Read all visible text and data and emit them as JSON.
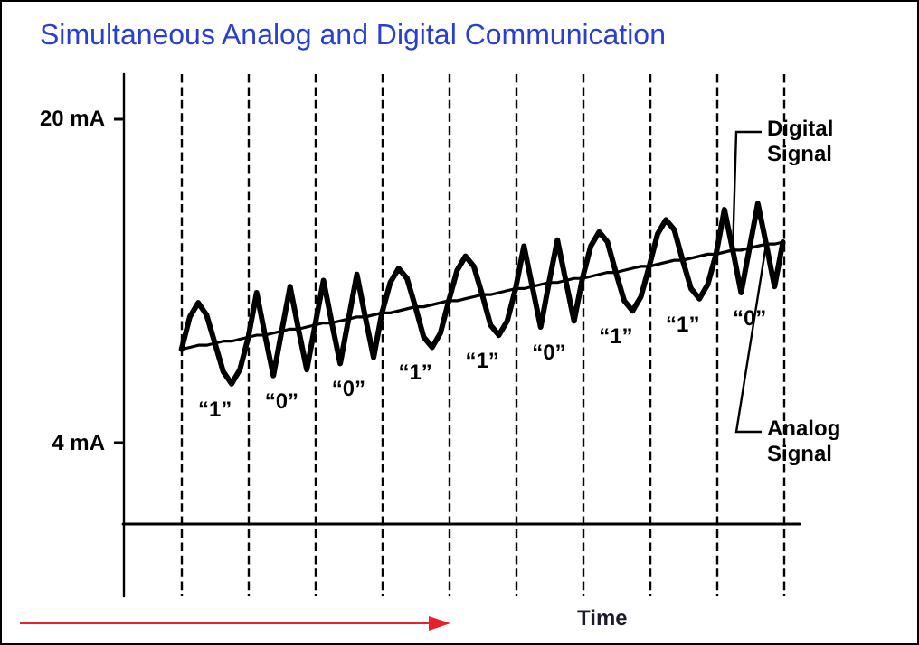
{
  "chart_data": {
    "type": "line",
    "title": "Simultaneous Analog and Digital Communication",
    "xlabel": "Time",
    "ylim": [
      -3.6,
      22.2
    ],
    "yticks": [
      {
        "value": 20,
        "label": "20 mA"
      },
      {
        "value": 4,
        "label": "4 mA"
      }
    ],
    "tick_labels": "y",
    "grid": "x",
    "legend": false,
    "categories": [
      null,
      null,
      null,
      null,
      null,
      null,
      null,
      null,
      null,
      null,
      null,
      null,
      null,
      null,
      null,
      null,
      null,
      null,
      null,
      null,
      null,
      null,
      null,
      null,
      null,
      null,
      null,
      null,
      null,
      null,
      null,
      null,
      null,
      null,
      null,
      null,
      null,
      null,
      null,
      null,
      null,
      null,
      null,
      null,
      null,
      null,
      null,
      null,
      null,
      null,
      null,
      null,
      null,
      null,
      null,
      null,
      null,
      null,
      null,
      null,
      null,
      null,
      null,
      null,
      null,
      null,
      null,
      null,
      null,
      null,
      null,
      null,
      null,
      null,
      null,
      null,
      null,
      null,
      null,
      null,
      null,
      null
    ],
    "series": [
      {
        "name": "Digital Signal",
        "color": "#000000",
        "values": [
          null,
          null,
          null,
          null,
          null,
          null,
          null,
          8.6,
          10.2,
          10.9,
          10.3,
          8.9,
          7.5,
          6.9,
          7.6,
          9.2,
          11.4,
          9.3,
          7.3,
          9.5,
          11.7,
          9.6,
          7.6,
          9.8,
          12.0,
          9.9,
          7.9,
          10.1,
          12.3,
          10.2,
          8.2,
          10.4,
          11.9,
          12.6,
          12.1,
          10.7,
          9.2,
          8.7,
          9.4,
          11.0,
          12.5,
          13.2,
          12.7,
          11.3,
          9.8,
          9.3,
          10.0,
          11.6,
          13.7,
          11.7,
          9.7,
          11.9,
          14.0,
          12.0,
          10.0,
          12.1,
          13.7,
          14.4,
          13.9,
          12.4,
          11.0,
          10.5,
          11.2,
          12.7,
          14.3,
          15.0,
          14.5,
          13.0,
          11.6,
          11.1,
          11.8,
          13.3,
          15.5,
          13.5,
          11.4,
          13.6,
          15.8,
          13.8,
          11.7,
          13.9,
          null,
          null
        ]
      },
      {
        "name": "Analog Signal",
        "color": "#000000",
        "values": [
          null,
          null,
          null,
          null,
          null,
          null,
          null,
          8.6,
          8.7,
          8.8,
          8.8,
          8.9,
          9.0,
          9.0,
          9.1,
          9.2,
          9.3,
          9.3,
          9.4,
          9.5,
          9.6,
          9.6,
          9.7,
          9.8,
          9.9,
          9.9,
          10.0,
          10.1,
          10.2,
          10.2,
          10.3,
          10.4,
          10.4,
          10.5,
          10.6,
          10.7,
          10.7,
          10.8,
          10.9,
          11.0,
          11.0,
          11.1,
          11.2,
          11.3,
          11.3,
          11.4,
          11.5,
          11.6,
          11.6,
          11.7,
          11.8,
          11.9,
          11.9,
          12.0,
          12.1,
          12.1,
          12.2,
          12.3,
          12.4,
          12.4,
          12.5,
          12.6,
          12.7,
          12.7,
          12.8,
          12.9,
          13.0,
          13.0,
          13.1,
          13.2,
          13.3,
          13.3,
          13.4,
          13.5,
          13.5,
          13.6,
          13.7,
          13.8,
          13.8,
          13.9,
          null,
          null
        ]
      }
    ],
    "annotations": [
      "“1”",
      "“0”",
      "“0”",
      "“1”",
      "“1”",
      "“0”",
      "“1”",
      "“1”",
      "“0”"
    ]
  }
}
